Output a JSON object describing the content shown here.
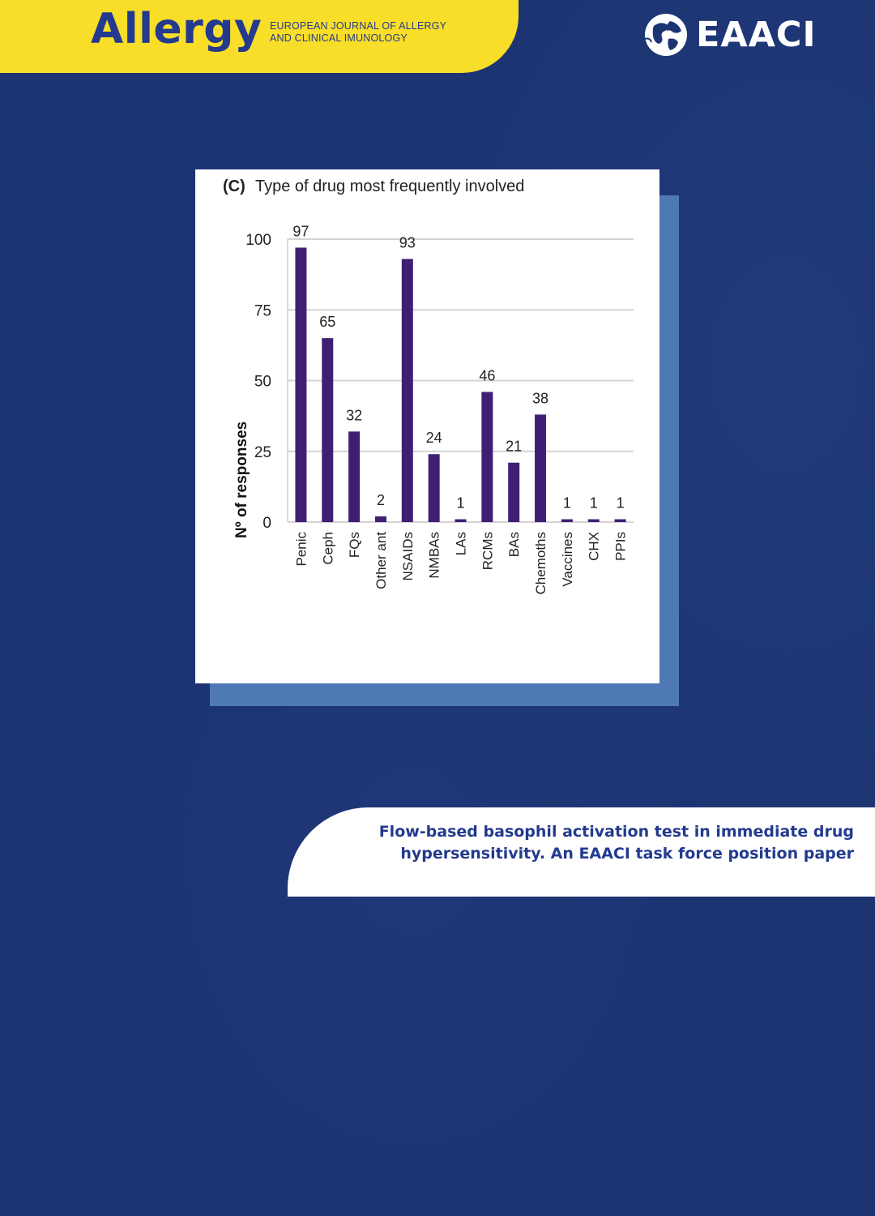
{
  "header": {
    "brand": "Allergy",
    "journal_line1": "EUROPEAN JOURNAL OF ALLERGY",
    "journal_line2": "AND CLINICAL IMUNOLOGY",
    "org_logo": "EAACI",
    "globe_icon": "globe-icon"
  },
  "caption": {
    "line1": "Flow-based basophil activation test in immediate drug",
    "line2": "hypersensitivity. An EAACI task force position paper"
  },
  "colors": {
    "background": "#1c3472",
    "banner": "#f8de28",
    "brand_text": "#233a8e",
    "bar": "#3f1f74",
    "shadow_card": "#4f79b4"
  },
  "chart_data": {
    "type": "bar",
    "title": "(C)  Type of drug most frequently involved",
    "panel_label": "(C)",
    "title_text": "Type of drug most frequently involved",
    "ylabel": "Nº of responses",
    "xlabel": "",
    "ylim": [
      0,
      100
    ],
    "yticks": [
      0,
      25,
      50,
      75,
      100
    ],
    "grid": true,
    "categories": [
      "Penic",
      "Ceph",
      "FQs",
      "Other ant",
      "NSAIDs",
      "NMBAs",
      "LAs",
      "RCMs",
      "BAs",
      "Chemoths",
      "Vaccines",
      "CHX",
      "PPIs"
    ],
    "values": [
      97,
      65,
      32,
      2,
      93,
      24,
      1,
      46,
      21,
      38,
      1,
      1,
      1
    ],
    "data_labels": [
      "97",
      "65",
      "32",
      "2",
      "93",
      "24",
      "1",
      "46",
      "21",
      "38",
      "1",
      "1",
      "1"
    ]
  }
}
